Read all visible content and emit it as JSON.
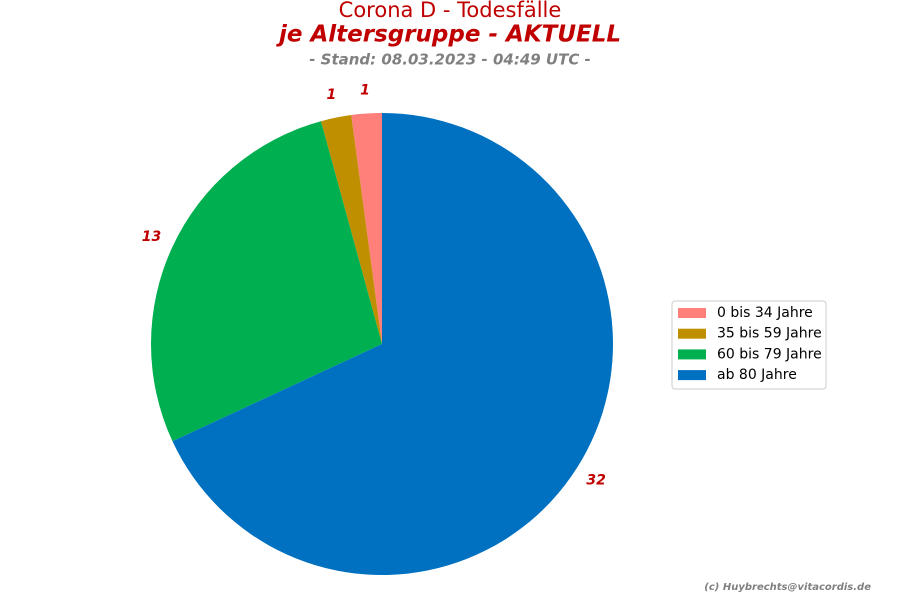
{
  "chart_data": {
    "type": "pie",
    "title": "Corona D - Todesfälle",
    "subtitle": "je Altersgruppe - AKTUELL",
    "stand": "- Stand: 08.03.2023 - 04:49 UTC -",
    "credit": "(c) Huybrechts@vitacordis.de",
    "categories": [
      "0 bis 34 Jahre",
      "35 bis 59 Jahre",
      "60 bis 79 Jahre",
      "ab 80 Jahre"
    ],
    "values": [
      1,
      1,
      13,
      32
    ],
    "colors": [
      "#ff7f7a",
      "#bf8f00",
      "#00b050",
      "#0070c0"
    ],
    "legend": "right"
  }
}
